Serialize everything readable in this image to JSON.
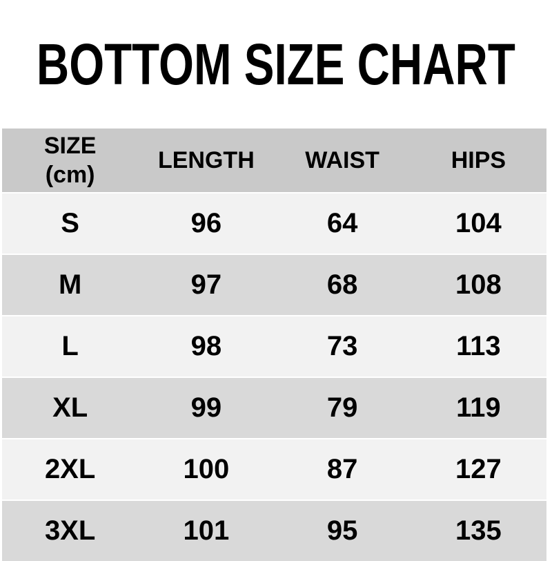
{
  "title": "BOTTOM SIZE CHART",
  "table": {
    "header": {
      "size_line1": "SIZE",
      "size_line2": "(cm)",
      "length": "LENGTH",
      "waist": "WAIST",
      "hips": "HIPS"
    }
  },
  "chart_data": {
    "type": "table",
    "title": "BOTTOM SIZE CHART",
    "columns": [
      "SIZE (cm)",
      "LENGTH",
      "WAIST",
      "HIPS"
    ],
    "rows": [
      [
        "S",
        96,
        64,
        104
      ],
      [
        "M",
        97,
        68,
        108
      ],
      [
        "L",
        98,
        73,
        113
      ],
      [
        "XL",
        99,
        79,
        119
      ],
      [
        "2XL",
        100,
        87,
        127
      ],
      [
        "3XL",
        101,
        95,
        135
      ]
    ],
    "unit": "cm",
    "layout": {
      "alternating_rows": true,
      "grid": false,
      "legend": "none"
    }
  },
  "colors": {
    "page_bg": "#ffffff",
    "header_bg": "#c9c9c9",
    "row_light": "#f2f2f2",
    "row_dark": "#d9d9d9",
    "text": "#000000",
    "row_separator": "#ffffff"
  }
}
